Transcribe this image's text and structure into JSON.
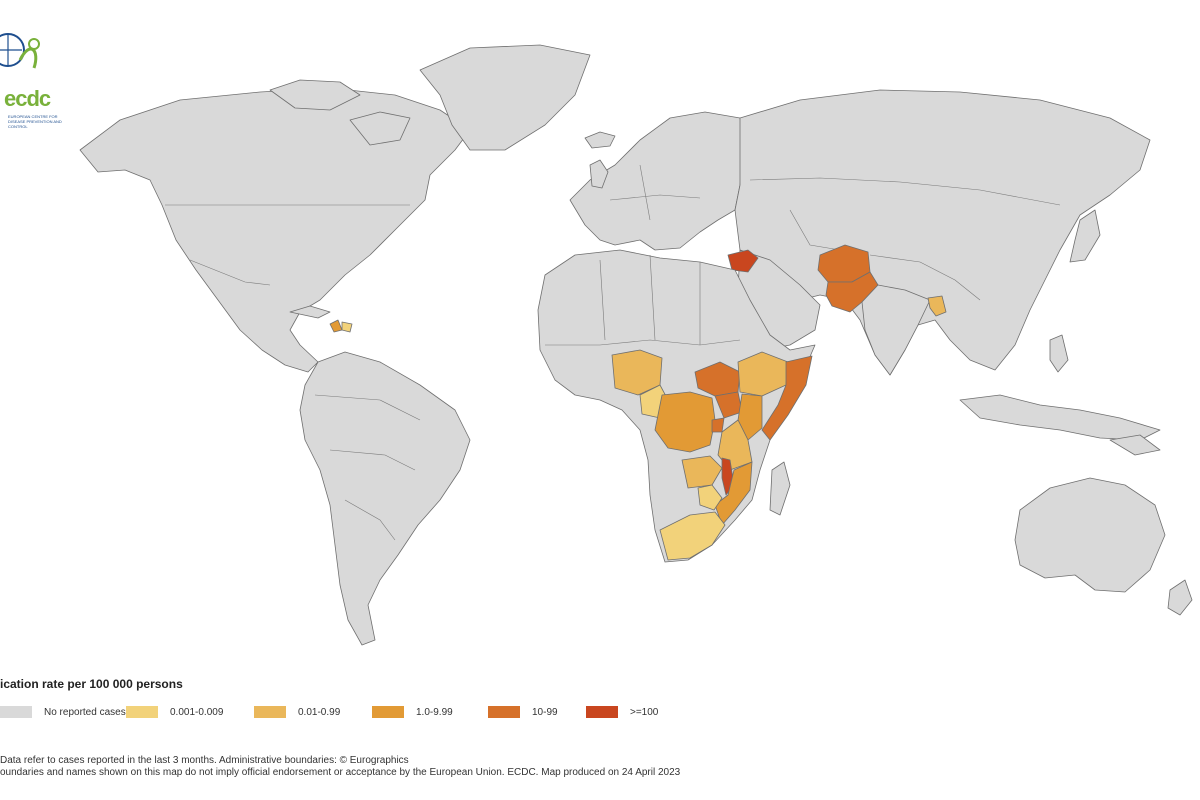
{
  "logo": {
    "text": "ecdc",
    "subtitle": "EUROPEAN CENTRE FOR DISEASE PREVENTION AND CONTROL"
  },
  "map": {
    "base_fill": "#d9d9d9",
    "categories": [
      {
        "label": "No reported cases",
        "color": "#d9d9d9"
      },
      {
        "label": "0.001-0.009",
        "color": "#f2d27a"
      },
      {
        "label": "0.01-0.99",
        "color": "#eab75a"
      },
      {
        "label": "1.0-9.99",
        "color": "#e29a35"
      },
      {
        "label": "10-99",
        "color": "#d6712a"
      },
      {
        "label": ">=100",
        "color": "#c9461f"
      }
    ],
    "countries": [
      {
        "name": "Nigeria",
        "category": "0.01-0.99"
      },
      {
        "name": "Cameroon",
        "category": "0.001-0.009"
      },
      {
        "name": "Democratic Republic of the Congo",
        "category": "1.0-9.99"
      },
      {
        "name": "South Sudan",
        "category": "10-99"
      },
      {
        "name": "Ethiopia",
        "category": "0.01-0.99"
      },
      {
        "name": "Somalia",
        "category": "10-99"
      },
      {
        "name": "Kenya",
        "category": "1.0-9.99"
      },
      {
        "name": "Uganda",
        "category": "10-99"
      },
      {
        "name": "Burundi",
        "category": "10-99"
      },
      {
        "name": "Tanzania",
        "category": "0.01-0.99"
      },
      {
        "name": "Zambia",
        "category": "0.01-0.99"
      },
      {
        "name": "Malawi",
        "category": ">=100"
      },
      {
        "name": "Mozambique",
        "category": "1.0-9.99"
      },
      {
        "name": "Zimbabwe",
        "category": "0.001-0.009"
      },
      {
        "name": "South Africa",
        "category": "0.001-0.009"
      },
      {
        "name": "Syria",
        "category": ">=100"
      },
      {
        "name": "Afghanistan",
        "category": "10-99"
      },
      {
        "name": "Pakistan",
        "category": "10-99"
      },
      {
        "name": "Bangladesh",
        "category": "0.01-0.99"
      },
      {
        "name": "Haiti",
        "category": "1.0-9.99"
      },
      {
        "name": "Dominican Republic",
        "category": "0.001-0.009"
      }
    ]
  },
  "legend": {
    "title": "ication rate per 100 000 persons",
    "items": [
      "No reported cases",
      "0.001-0.009",
      "0.01-0.99",
      "1.0-9.99",
      "10-99",
      ">=100"
    ]
  },
  "footnotes": [
    "Data refer to cases reported in the last 3 months. Administrative boundaries: © Eurographics",
    "oundaries and names shown on this map do not imply official endorsement or acceptance by the European Union. ECDC. Map produced on 24 April 2023"
  ]
}
